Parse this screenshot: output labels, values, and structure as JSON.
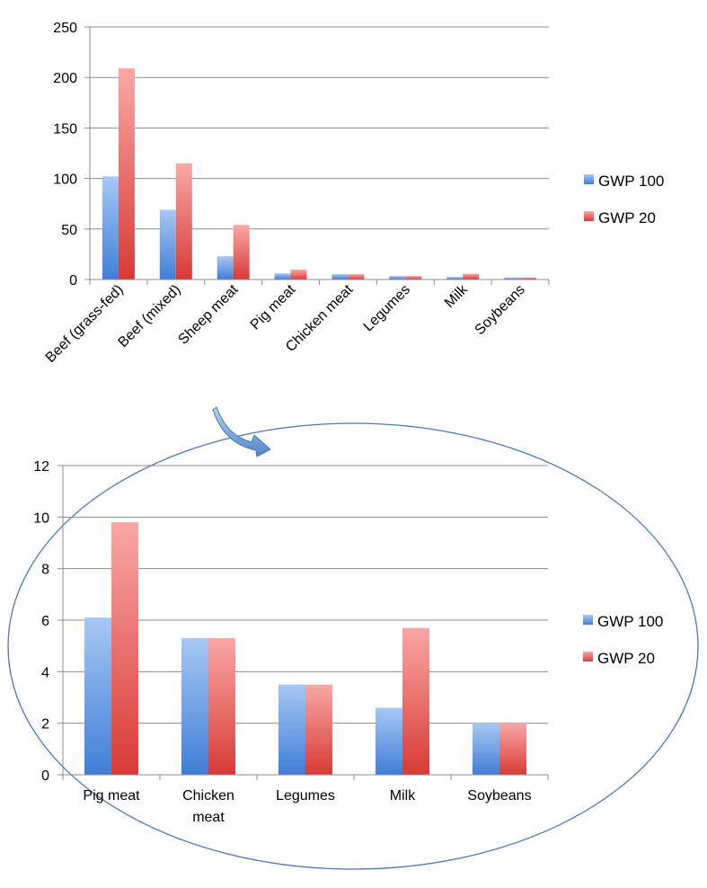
{
  "colors": {
    "gwp100_light": "#a8c8f4",
    "gwp100_dark": "#3f7ed6",
    "gwp20_light": "#f9a8a6",
    "gwp20_dark": "#d83a36",
    "grid": "#8c8c8c",
    "ellipse": "#4a78b8",
    "arrow_light": "#b9d2ef",
    "arrow_dark": "#4f86c9"
  },
  "chart_data": [
    {
      "type": "bar",
      "categories": [
        "Beef (grass-fed)",
        "Beef (mixed)",
        "Sheep meat",
        "Pig meat",
        "Chicken meat",
        "Legumes",
        "Milk",
        "Soybeans"
      ],
      "series": [
        {
          "name": "GWP 100",
          "values": [
            102,
            69,
            23,
            6.1,
            5.3,
            3.5,
            2.6,
            2
          ]
        },
        {
          "name": "GWP 20",
          "values": [
            209,
            115,
            54,
            9.8,
            5.3,
            3.5,
            5.7,
            2
          ]
        }
      ],
      "ylim": [
        0,
        250
      ],
      "yticks": [
        0,
        50,
        100,
        150,
        200,
        250
      ],
      "grid": true,
      "legend": "right",
      "xlabel_rotation": "diagonal"
    },
    {
      "type": "bar",
      "categories": [
        "Pig meat",
        "Chicken meat",
        "Legumes",
        "Milk",
        "Soybeans"
      ],
      "category_lines": [
        [
          "Pig meat"
        ],
        [
          "Chicken",
          "meat"
        ],
        [
          "Legumes"
        ],
        [
          "Milk"
        ],
        [
          "Soybeans"
        ]
      ],
      "series": [
        {
          "name": "GWP 100",
          "values": [
            6.1,
            5.3,
            3.5,
            2.6,
            2
          ]
        },
        {
          "name": "GWP 20",
          "values": [
            9.8,
            5.3,
            3.5,
            5.7,
            2
          ]
        }
      ],
      "ylim": [
        0,
        12
      ],
      "yticks": [
        0,
        2,
        4,
        6,
        8,
        10,
        12
      ],
      "grid": true,
      "legend": "right",
      "zoom_of": "first chart, last five categories"
    }
  ]
}
